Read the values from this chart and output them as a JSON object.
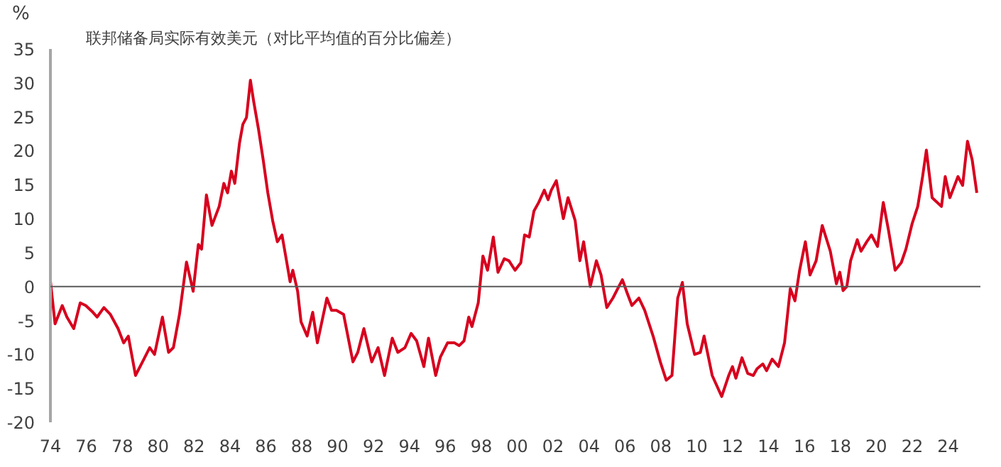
{
  "chart_data": {
    "type": "line",
    "title": "联邦储备局实际有效美元（对比平均值的百分比偏差）",
    "ylabel": "%",
    "x": [
      1974.0,
      1974.26,
      1974.66,
      1974.92,
      1975.3,
      1975.66,
      1975.97,
      1976.37,
      1976.6,
      1976.98,
      1977.34,
      1977.77,
      1978.08,
      1978.34,
      1978.74,
      1979.13,
      1979.53,
      1979.8,
      1980.24,
      1980.58,
      1980.85,
      1981.19,
      1981.58,
      1981.95,
      1982.24,
      1982.42,
      1982.69,
      1983.0,
      1983.4,
      1983.66,
      1983.87,
      1984.08,
      1984.27,
      1984.53,
      1984.72,
      1984.92,
      1985.14,
      1985.32,
      1985.59,
      1985.85,
      1986.11,
      1986.38,
      1986.64,
      1986.9,
      1987.17,
      1987.35,
      1987.5,
      1987.77,
      1987.96,
      1988.3,
      1988.61,
      1988.87,
      1989.4,
      1989.66,
      1989.93,
      1990.33,
      1990.85,
      1991.12,
      1991.46,
      1991.9,
      1992.25,
      1992.61,
      1993.04,
      1993.35,
      1993.75,
      1994.09,
      1994.4,
      1994.8,
      1995.06,
      1995.46,
      1995.72,
      1996.12,
      1996.51,
      1996.77,
      1997.04,
      1997.3,
      1997.48,
      1997.83,
      1998.09,
      1998.35,
      1998.67,
      1998.93,
      1999.28,
      1999.54,
      1999.88,
      2000.2,
      2000.41,
      2000.67,
      2000.93,
      2001.2,
      2001.51,
      2001.72,
      2001.9,
      2002.18,
      2002.57,
      2002.83,
      2003.23,
      2003.49,
      2003.7,
      2004.07,
      2004.41,
      2004.67,
      2004.99,
      2005.33,
      2005.6,
      2005.86,
      2006.13,
      2006.39,
      2006.78,
      2007.1,
      2007.57,
      2007.97,
      2008.3,
      2008.62,
      2008.94,
      2009.2,
      2009.47,
      2009.88,
      2010.2,
      2010.41,
      2010.86,
      2011.39,
      2011.78,
      2011.99,
      2012.18,
      2012.52,
      2012.84,
      2013.15,
      2013.36,
      2013.68,
      2013.89,
      2014.2,
      2014.55,
      2014.89,
      2015.21,
      2015.47,
      2015.73,
      2016.05,
      2016.31,
      2016.65,
      2016.99,
      2017.44,
      2017.78,
      2017.97,
      2018.15,
      2018.36,
      2018.57,
      2018.94,
      2019.15,
      2019.47,
      2019.73,
      2020.07,
      2020.39,
      2020.68,
      2021.05,
      2021.39,
      2021.65,
      2022.0,
      2022.31,
      2022.58,
      2022.79,
      2023.11,
      2023.63,
      2023.84,
      2024.1,
      2024.55,
      2024.81,
      2025.08,
      2025.34,
      2025.6
    ],
    "series": [
      {
        "color": "#d7001e",
        "values": [
          0.8,
          -5.5,
          -2.8,
          -4.5,
          -6.2,
          -2.4,
          -2.8,
          -3.8,
          -4.5,
          -3.1,
          -4.1,
          -6.2,
          -8.3,
          -7.3,
          -13.1,
          -11.1,
          -9,
          -10,
          -4.5,
          -9.7,
          -9,
          -4.1,
          3.6,
          -0.7,
          6.2,
          5.5,
          13.5,
          9,
          11.8,
          15.2,
          13.8,
          17,
          15.2,
          21.1,
          23.9,
          24.9,
          30.4,
          27.3,
          23.2,
          18.7,
          13.8,
          9.7,
          6.6,
          7.6,
          3.5,
          0.7,
          2.4,
          -0.7,
          -5.2,
          -7.3,
          -3.8,
          -8.3,
          -1.7,
          -3.5,
          -3.5,
          -4.1,
          -11.1,
          -9.7,
          -6.2,
          -11.1,
          -9,
          -13.1,
          -7.6,
          -9.7,
          -9,
          -6.9,
          -8,
          -11.8,
          -7.6,
          -13.1,
          -10.4,
          -8.3,
          -8.3,
          -8.7,
          -8,
          -4.5,
          -5.9,
          -2.4,
          4.5,
          2.4,
          7.3,
          2.1,
          4.1,
          3.8,
          2.4,
          3.5,
          7.6,
          7.3,
          11.1,
          12.4,
          14.2,
          12.8,
          14.2,
          15.6,
          10,
          13.1,
          9.7,
          3.8,
          6.6,
          0,
          3.8,
          1.7,
          -3.1,
          -1.7,
          -0.3,
          1,
          -1,
          -2.8,
          -1.7,
          -3.5,
          -7.3,
          -11.1,
          -13.8,
          -13.1,
          -1.7,
          0.6,
          -5.5,
          -10,
          -9.7,
          -7.3,
          -13.1,
          -16.2,
          -13.1,
          -11.8,
          -13.5,
          -10.5,
          -12.8,
          -13.1,
          -12.1,
          -11.4,
          -12.4,
          -10.7,
          -11.8,
          -8.3,
          -0.3,
          -2.1,
          2.4,
          6.6,
          1.7,
          3.8,
          9,
          5.2,
          0.4,
          2.1,
          -0.6,
          0,
          3.8,
          6.9,
          5.2,
          6.6,
          7.6,
          5.9,
          12.4,
          8.3,
          2.4,
          3.5,
          5.5,
          9.3,
          11.8,
          16.2,
          20.1,
          13.1,
          11.8,
          16.2,
          13.1,
          16.2,
          14.9,
          21.4,
          18.7,
          13.8
        ]
      }
    ],
    "xlim": [
      1974,
      2025.8
    ],
    "ylim": [
      -20,
      35
    ],
    "xticks": [
      {
        "value": 1974,
        "label": "74"
      },
      {
        "value": 1976,
        "label": "76"
      },
      {
        "value": 1978,
        "label": "78"
      },
      {
        "value": 1980,
        "label": "80"
      },
      {
        "value": 1982,
        "label": "82"
      },
      {
        "value": 1984,
        "label": "84"
      },
      {
        "value": 1986,
        "label": "86"
      },
      {
        "value": 1988,
        "label": "88"
      },
      {
        "value": 1990,
        "label": "90"
      },
      {
        "value": 1992,
        "label": "92"
      },
      {
        "value": 1994,
        "label": "94"
      },
      {
        "value": 1996,
        "label": "96"
      },
      {
        "value": 1998,
        "label": "98"
      },
      {
        "value": 2000,
        "label": "00"
      },
      {
        "value": 2002,
        "label": "02"
      },
      {
        "value": 2004,
        "label": "04"
      },
      {
        "value": 2006,
        "label": "06"
      },
      {
        "value": 2008,
        "label": "08"
      },
      {
        "value": 2010,
        "label": "10"
      },
      {
        "value": 2012,
        "label": "12"
      },
      {
        "value": 2014,
        "label": "14"
      },
      {
        "value": 2016,
        "label": "16"
      },
      {
        "value": 2018,
        "label": "18"
      },
      {
        "value": 2020,
        "label": "20"
      },
      {
        "value": 2022,
        "label": "22"
      },
      {
        "value": 2024,
        "label": "24"
      }
    ],
    "yticks": [
      -20,
      -15,
      -10,
      -5,
      0,
      5,
      10,
      15,
      20,
      25,
      30,
      35
    ],
    "ref_lines": [
      {
        "axis": "y",
        "value": 0,
        "color": "#595959"
      }
    ],
    "grid": false
  }
}
